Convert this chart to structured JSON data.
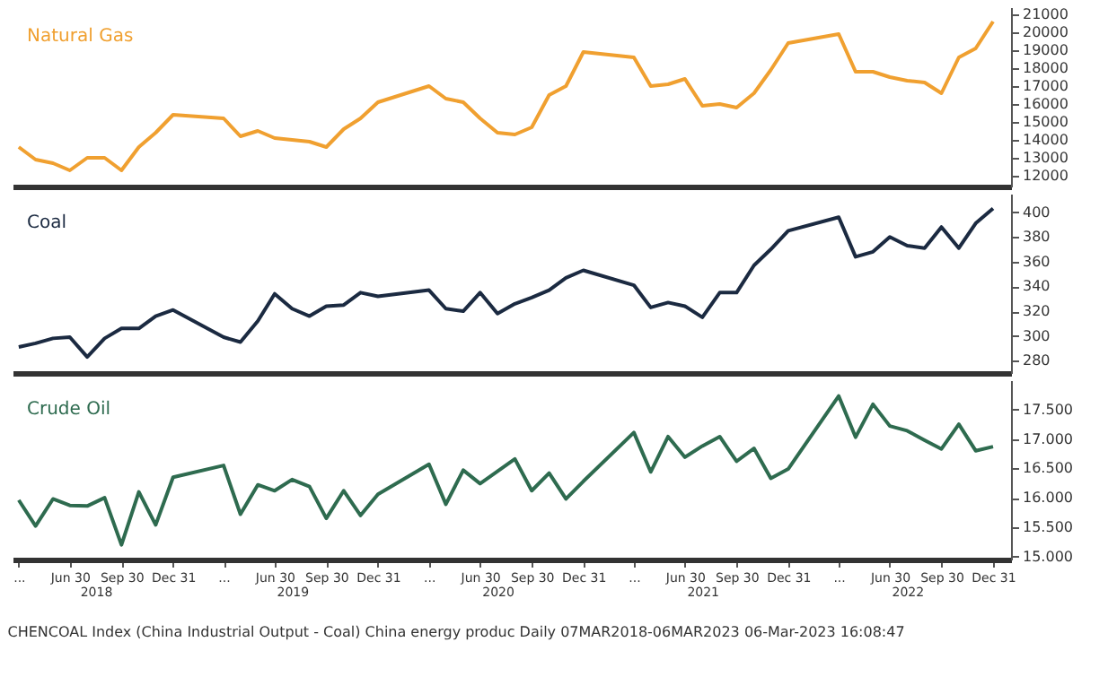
{
  "chart_data": [
    {
      "type": "line",
      "tick_labels": "y",
      "legend": false,
      "grid": false,
      "marker": "none",
      "line_style": "solid",
      "x": [
        "2018-03-31",
        "2018-04-30",
        "2018-05-31",
        "2018-06-30",
        "2018-07-31",
        "2018-08-31",
        "2018-09-30",
        "2018-10-31",
        "2018-11-30",
        "2018-12-31",
        "2019-03-31",
        "2019-04-30",
        "2019-05-31",
        "2019-06-30",
        "2019-07-31",
        "2019-08-31",
        "2019-09-30",
        "2019-10-31",
        "2019-11-30",
        "2019-12-31",
        "2020-03-31",
        "2020-04-30",
        "2020-05-31",
        "2020-06-30",
        "2020-07-31",
        "2020-08-31",
        "2020-09-30",
        "2020-10-31",
        "2020-11-30",
        "2020-12-31",
        "2021-03-31",
        "2021-04-30",
        "2021-05-31",
        "2021-06-30",
        "2021-07-31",
        "2021-08-31",
        "2021-09-30",
        "2021-10-31",
        "2021-11-30",
        "2021-12-31",
        "2022-03-31",
        "2022-04-30",
        "2022-05-31",
        "2022-06-30",
        "2022-07-31",
        "2022-08-31",
        "2022-09-30",
        "2022-10-31",
        "2022-11-30",
        "2022-12-31"
      ],
      "xlim": [
        "2018-03-20",
        "2023-02-01"
      ],
      "ylim": [
        11400,
        21400
      ],
      "yticks": [
        12000,
        13000,
        14000,
        15000,
        16000,
        17000,
        18000,
        19000,
        20000,
        21000
      ],
      "series": [
        {
          "name": "Natural Gas",
          "color": "#f0a030",
          "values": [
            13600,
            12900,
            12700,
            12300,
            13000,
            13000,
            12300,
            13600,
            14400,
            15400,
            15200,
            14200,
            14500,
            14100,
            14000,
            13900,
            13600,
            14600,
            15200,
            16100,
            17000,
            16300,
            16100,
            15200,
            14400,
            14300,
            14700,
            16500,
            17000,
            18900,
            18600,
            17000,
            17100,
            17400,
            15900,
            16000,
            15800,
            16600,
            17900,
            19400,
            19900,
            17800,
            17800,
            17500,
            17300,
            17200,
            16600,
            18600,
            19100,
            20600
          ]
        }
      ]
    },
    {
      "type": "line",
      "tick_labels": "y",
      "legend": false,
      "grid": false,
      "marker": "none",
      "line_style": "solid",
      "x": [
        "2018-03-31",
        "2018-04-30",
        "2018-05-31",
        "2018-06-30",
        "2018-07-31",
        "2018-08-31",
        "2018-09-30",
        "2018-10-31",
        "2018-11-30",
        "2018-12-31",
        "2019-03-31",
        "2019-04-30",
        "2019-05-31",
        "2019-06-30",
        "2019-07-31",
        "2019-08-31",
        "2019-09-30",
        "2019-10-31",
        "2019-11-30",
        "2019-12-31",
        "2020-03-31",
        "2020-04-30",
        "2020-05-31",
        "2020-06-30",
        "2020-07-31",
        "2020-08-31",
        "2020-09-30",
        "2020-10-31",
        "2020-11-30",
        "2020-12-31",
        "2021-03-31",
        "2021-04-30",
        "2021-05-31",
        "2021-06-30",
        "2021-07-31",
        "2021-08-31",
        "2021-09-30",
        "2021-10-31",
        "2021-11-30",
        "2021-12-31",
        "2022-03-31",
        "2022-04-30",
        "2022-05-31",
        "2022-06-30",
        "2022-07-31",
        "2022-08-31",
        "2022-09-30",
        "2022-10-31",
        "2022-11-30",
        "2022-12-31"
      ],
      "xlim": [
        "2018-03-20",
        "2023-02-01"
      ],
      "ylim": [
        270,
        415
      ],
      "yticks": [
        280,
        300,
        320,
        340,
        360,
        380,
        400
      ],
      "series": [
        {
          "name": "Coal",
          "color": "#1b2a41",
          "values": [
            291,
            294,
            298,
            299,
            283,
            298,
            306,
            306,
            316,
            321,
            299,
            295,
            312,
            334,
            322,
            316,
            324,
            325,
            335,
            332,
            337,
            322,
            320,
            335,
            318,
            326,
            331,
            337,
            347,
            353,
            341,
            323,
            327,
            324,
            315,
            335,
            335,
            357,
            370,
            385,
            396,
            364,
            368,
            380,
            373,
            371,
            388,
            371,
            391,
            403
          ]
        }
      ]
    },
    {
      "type": "line",
      "legend": false,
      "grid": false,
      "marker": "none",
      "line_style": "solid",
      "x": [
        "2018-03-31",
        "2018-04-30",
        "2018-05-31",
        "2018-06-30",
        "2018-07-31",
        "2018-08-31",
        "2018-09-30",
        "2018-10-31",
        "2018-11-30",
        "2018-12-31",
        "2019-03-31",
        "2019-04-30",
        "2019-05-31",
        "2019-06-30",
        "2019-07-31",
        "2019-08-31",
        "2019-09-30",
        "2019-10-31",
        "2019-11-30",
        "2019-12-31",
        "2020-03-31",
        "2020-04-30",
        "2020-05-31",
        "2020-06-30",
        "2020-07-31",
        "2020-08-31",
        "2020-09-30",
        "2020-10-31",
        "2020-11-30",
        "2020-12-31",
        "2021-03-31",
        "2021-04-30",
        "2021-05-31",
        "2021-06-30",
        "2021-07-31",
        "2021-08-31",
        "2021-09-30",
        "2021-10-31",
        "2021-11-30",
        "2021-12-31",
        "2022-03-31",
        "2022-04-30",
        "2022-05-31",
        "2022-06-30",
        "2022-07-31",
        "2022-08-31",
        "2022-09-30",
        "2022-10-31",
        "2022-11-30",
        "2022-12-31"
      ],
      "xlim": [
        "2018-03-20",
        "2023-02-01"
      ],
      "xticks": [
        {
          "value": "2018-03-31",
          "label": "..."
        },
        {
          "value": "2018-06-30",
          "label": "Jun 30"
        },
        {
          "value": "2018-09-30",
          "label": "Sep 30"
        },
        {
          "value": "2018-12-31",
          "label": "Dec 31"
        },
        {
          "value": "2019-03-31",
          "label": "..."
        },
        {
          "value": "2019-06-30",
          "label": "Jun 30"
        },
        {
          "value": "2019-09-30",
          "label": "Sep 30"
        },
        {
          "value": "2019-12-31",
          "label": "Dec 31"
        },
        {
          "value": "2020-03-31",
          "label": "..."
        },
        {
          "value": "2020-06-30",
          "label": "Jun 30"
        },
        {
          "value": "2020-09-30",
          "label": "Sep 30"
        },
        {
          "value": "2020-12-31",
          "label": "Dec 31"
        },
        {
          "value": "2021-03-31",
          "label": "..."
        },
        {
          "value": "2021-06-30",
          "label": "Jun 30"
        },
        {
          "value": "2021-09-30",
          "label": "Sep 30"
        },
        {
          "value": "2021-12-31",
          "label": "Dec 31"
        },
        {
          "value": "2022-03-31",
          "label": "..."
        },
        {
          "value": "2022-06-30",
          "label": "Jun 30"
        },
        {
          "value": "2022-09-30",
          "label": "Sep 30"
        },
        {
          "value": "2022-12-31",
          "label": "Dec 31"
        }
      ],
      "x2lim": [
        "2018-03-20",
        "2023-02-01"
      ],
      "x2ticks": [
        {
          "value": "2018-08-15",
          "label": "2018"
        },
        {
          "value": "2019-07-31",
          "label": "2019"
        },
        {
          "value": "2020-07-31",
          "label": "2020"
        },
        {
          "value": "2021-07-31",
          "label": "2021"
        },
        {
          "value": "2022-07-31",
          "label": "2022"
        }
      ],
      "ylim": [
        14950,
        18000
      ],
      "yticks": [
        {
          "value": 15000,
          "label": "15.000"
        },
        {
          "value": 15500,
          "label": "15.500"
        },
        {
          "value": 16000,
          "label": "16.000"
        },
        {
          "value": 16500,
          "label": "16.500"
        },
        {
          "value": 17000,
          "label": "17.000"
        },
        {
          "value": 17500,
          "label": "17.500"
        }
      ],
      "series": [
        {
          "name": "Crude Oil",
          "color": "#2e6b4f",
          "values": [
            15960,
            15520,
            15980,
            15870,
            15860,
            16000,
            15200,
            16100,
            15540,
            16350,
            16550,
            15720,
            16220,
            16120,
            16310,
            16190,
            15650,
            16120,
            15700,
            16060,
            16570,
            15890,
            16470,
            16240,
            16450,
            16660,
            16120,
            16420,
            15980,
            16280,
            17110,
            16440,
            17040,
            16690,
            16880,
            17040,
            16620,
            16840,
            16330,
            16490,
            17730,
            17030,
            17590,
            17220,
            17140,
            16980,
            16830,
            17250,
            16800,
            16870
          ]
        }
      ],
      "annotations": [
        "CHENCOAL Index (China Industrial Output - Coal) China energy produc  Daily 07MAR2018-06MAR2023  06-Mar-2023 16:08:47"
      ]
    }
  ]
}
